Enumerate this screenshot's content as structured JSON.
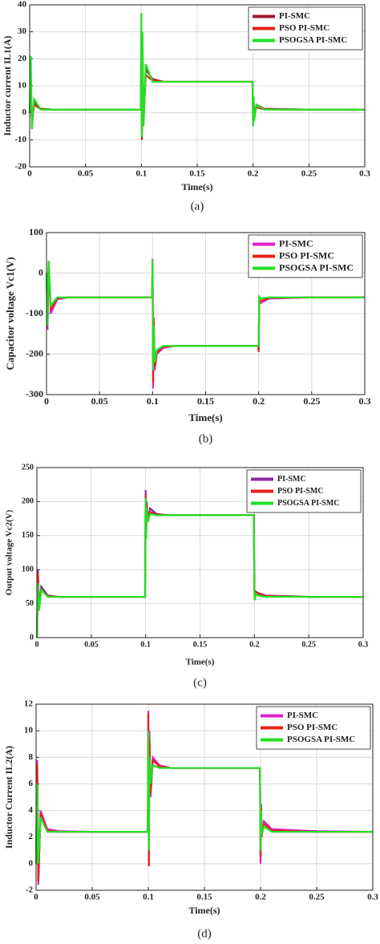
{
  "chart_data": [
    {
      "type": "line",
      "caption": "(a)",
      "x_label": "Time(s)",
      "y_label": "Inductor current IL1(A)",
      "x": [
        0,
        0.001,
        0.002,
        0.004,
        0.01,
        0.02,
        0.05,
        0.0995,
        0.1,
        0.1005,
        0.101,
        0.102,
        0.104,
        0.11,
        0.12,
        0.15,
        0.1995,
        0.2,
        0.2005,
        0.201,
        0.203,
        0.21,
        0.25,
        0.3
      ],
      "series": [
        {
          "name": "PI-SMC",
          "color": "#a01830",
          "values": [
            0,
            10,
            -5,
            4,
            1.5,
            1.2,
            1.2,
            1.2,
            26,
            -10,
            22,
            -3,
            16,
            12.5,
            11.5,
            11.5,
            11.5,
            -3,
            5,
            -1,
            3,
            1.5,
            1.2,
            1.2
          ]
        },
        {
          "name": "PSO PI-SMC",
          "color": "#e8201c",
          "values": [
            0,
            8,
            -4,
            3,
            1.3,
            1.2,
            1.2,
            1.2,
            22,
            -8,
            18,
            0,
            14,
            12,
            11.5,
            11.5,
            11.5,
            -2,
            4,
            -1,
            2,
            1.3,
            1.2,
            1.2
          ]
        },
        {
          "name": "PSOGSA PI-SMC",
          "color": "#22e022",
          "values": [
            0,
            21,
            -6,
            5,
            1.2,
            1.2,
            1.2,
            1.2,
            37,
            -9,
            30,
            -5,
            18,
            11.5,
            11.5,
            11.5,
            11.5,
            -5,
            6,
            -3,
            3,
            1.2,
            1.2,
            1.2
          ]
        }
      ],
      "xlim": [
        0,
        0.3
      ],
      "xticks": [
        0,
        0.05,
        0.1,
        0.15,
        0.2,
        0.25,
        0.3
      ],
      "ylim": [
        -20,
        40
      ],
      "yticks": [
        -20,
        -10,
        0,
        10,
        20,
        30,
        40
      ],
      "grid": true,
      "legend": "top-right"
    },
    {
      "type": "line",
      "caption": "(b)",
      "x_label": "Time(s)",
      "y_label": "Capacitor voltage Vc1(V)",
      "x": [
        0,
        0.001,
        0.002,
        0.004,
        0.01,
        0.02,
        0.05,
        0.0995,
        0.1,
        0.1005,
        0.101,
        0.102,
        0.104,
        0.11,
        0.12,
        0.15,
        0.1995,
        0.2,
        0.2005,
        0.201,
        0.203,
        0.21,
        0.25,
        0.3
      ],
      "series": [
        {
          "name": "PI-SMC",
          "color": "#e020d0",
          "values": [
            0,
            -140,
            20,
            -100,
            -65,
            -60,
            -60,
            -60,
            35,
            -285,
            -120,
            -240,
            -200,
            -185,
            -180,
            -180,
            -180,
            -190,
            -70,
            -75,
            -72,
            -63,
            -60,
            -60
          ]
        },
        {
          "name": "PSO PI-SMC",
          "color": "#e8201c",
          "values": [
            0,
            -120,
            30,
            -90,
            -62,
            -60,
            -60,
            -60,
            30,
            -270,
            -110,
            -230,
            -195,
            -182,
            -180,
            -180,
            -180,
            -195,
            -60,
            -70,
            -68,
            -61,
            -60,
            -60
          ]
        },
        {
          "name": "PSOGSA PI-SMC",
          "color": "#22e022",
          "values": [
            0,
            -130,
            30,
            -80,
            -60,
            -60,
            -60,
            -60,
            35,
            -240,
            -130,
            -220,
            -190,
            -180,
            -180,
            -180,
            -180,
            -180,
            -55,
            -65,
            -62,
            -60,
            -60,
            -60
          ]
        }
      ],
      "xlim": [
        0,
        0.3
      ],
      "xticks": [
        0,
        0.05,
        0.1,
        0.15,
        0.2,
        0.25,
        0.3
      ],
      "ylim": [
        -300,
        100
      ],
      "yticks": [
        -300,
        -200,
        -100,
        0,
        100
      ],
      "grid": true,
      "legend": "top-right"
    },
    {
      "type": "line",
      "caption": "(c)",
      "x_label": "Time(s)",
      "y_label": "Output voltage Vc2(V)",
      "x": [
        0,
        0.001,
        0.002,
        0.004,
        0.01,
        0.02,
        0.05,
        0.0995,
        0.1,
        0.1005,
        0.101,
        0.102,
        0.104,
        0.11,
        0.12,
        0.15,
        0.1995,
        0.2,
        0.2005,
        0.201,
        0.203,
        0.21,
        0.25,
        0.3
      ],
      "series": [
        {
          "name": "PI-SMC",
          "color": "#8a2aa0",
          "values": [
            0,
            100,
            40,
            75,
            62,
            60,
            60,
            60,
            217,
            150,
            200,
            170,
            190,
            182,
            180,
            180,
            180,
            70,
            65,
            68,
            66,
            62,
            60,
            60
          ]
        },
        {
          "name": "PSO PI-SMC",
          "color": "#e8201c",
          "values": [
            0,
            95,
            45,
            70,
            61,
            60,
            60,
            60,
            210,
            155,
            195,
            172,
            185,
            181,
            180,
            180,
            180,
            72,
            64,
            67,
            65,
            61,
            60,
            60
          ]
        },
        {
          "name": "PSOGSA PI-SMC",
          "color": "#22e022",
          "values": [
            0,
            80,
            40,
            70,
            60,
            60,
            60,
            60,
            205,
            145,
            190,
            170,
            182,
            180,
            180,
            180,
            180,
            60,
            55,
            65,
            62,
            60,
            60,
            60
          ]
        }
      ],
      "xlim": [
        0,
        0.3
      ],
      "xticks": [
        0,
        0.05,
        0.1,
        0.15,
        0.2,
        0.25,
        0.3
      ],
      "ylim": [
        0,
        250
      ],
      "yticks": [
        0,
        50,
        100,
        150,
        200,
        250
      ],
      "grid": true,
      "legend": "top-right"
    },
    {
      "type": "line",
      "caption": "(d)",
      "x_label": "Time(s)",
      "y_label": "Inductor Current IL2(A)",
      "x": [
        0,
        0.001,
        0.002,
        0.004,
        0.01,
        0.02,
        0.05,
        0.0995,
        0.1,
        0.1005,
        0.101,
        0.102,
        0.104,
        0.11,
        0.12,
        0.15,
        0.1995,
        0.2,
        0.2005,
        0.201,
        0.203,
        0.21,
        0.25,
        0.3
      ],
      "series": [
        {
          "name": "PI-SMC",
          "color": "#e020d0",
          "values": [
            0,
            7.8,
            -1.6,
            4,
            2.6,
            2.45,
            2.4,
            2.4,
            11.5,
            0,
            10,
            5,
            8,
            7.4,
            7.2,
            7.2,
            7.2,
            0,
            4.5,
            2,
            3.2,
            2.6,
            2.45,
            2.4
          ]
        },
        {
          "name": "PSO PI-SMC",
          "color": "#e8201c",
          "values": [
            0,
            7.5,
            -1.4,
            3.8,
            2.5,
            2.4,
            2.4,
            2.4,
            11.3,
            -0.2,
            9.5,
            5.2,
            7.8,
            7.3,
            7.2,
            7.2,
            7.2,
            0.5,
            4.2,
            2.2,
            3,
            2.5,
            2.4,
            2.4
          ]
        },
        {
          "name": "PSOGSA PI-SMC",
          "color": "#22e022",
          "values": [
            0,
            6,
            0,
            3.5,
            2.4,
            2.4,
            2.4,
            2.4,
            10,
            1,
            8,
            6,
            7.4,
            7.2,
            7.2,
            7.2,
            7.2,
            1,
            4,
            2.2,
            2.8,
            2.4,
            2.4,
            2.4
          ]
        }
      ],
      "xlim": [
        0,
        0.3
      ],
      "xticks": [
        0,
        0.05,
        0.1,
        0.15,
        0.2,
        0.25,
        0.3
      ],
      "ylim": [
        -2,
        12
      ],
      "yticks": [
        -2,
        0,
        2,
        4,
        6,
        8,
        10,
        12
      ],
      "grid": true,
      "legend": "top-right"
    }
  ]
}
